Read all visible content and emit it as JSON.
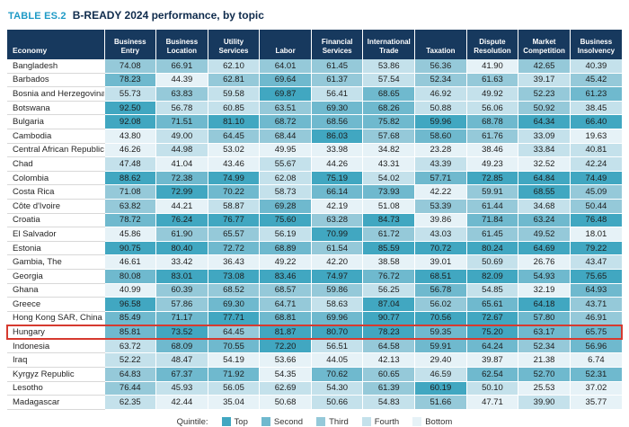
{
  "chart_data": {
    "type": "table",
    "table_tag": "TABLE ES.2",
    "title": "B-READY 2024 performance, by topic",
    "row_header": "Economy",
    "columns": [
      "Business Entry",
      "Business Location",
      "Utility Services",
      "Labor",
      "Financial Services",
      "International Trade",
      "Taxation",
      "Dispute Resolution",
      "Market Competition",
      "Business Insolvency"
    ],
    "rows": [
      {
        "economy": "Bangladesh",
        "values": [
          "74.08",
          "66.91",
          "62.10",
          "64.01",
          "61.45",
          "53.86",
          "56.36",
          "41.90",
          "42.65",
          "40.39"
        ]
      },
      {
        "economy": "Barbados",
        "values": [
          "78.23",
          "44.39",
          "62.81",
          "69.64",
          "61.37",
          "57.54",
          "52.34",
          "61.63",
          "39.17",
          "45.42"
        ]
      },
      {
        "economy": "Bosnia and Herzegovina",
        "values": [
          "55.73",
          "63.83",
          "59.58",
          "69.87",
          "56.41",
          "68.65",
          "46.92",
          "49.92",
          "52.23",
          "61.23"
        ]
      },
      {
        "economy": "Botswana",
        "values": [
          "92.50",
          "56.78",
          "60.85",
          "63.51",
          "69.30",
          "68.26",
          "50.88",
          "56.06",
          "50.92",
          "38.45"
        ]
      },
      {
        "economy": "Bulgaria",
        "values": [
          "92.08",
          "71.51",
          "81.10",
          "68.72",
          "68.56",
          "75.82",
          "59.96",
          "68.78",
          "64.34",
          "66.40"
        ]
      },
      {
        "economy": "Cambodia",
        "values": [
          "43.80",
          "49.00",
          "64.45",
          "68.44",
          "86.03",
          "57.68",
          "58.60",
          "61.76",
          "33.09",
          "19.63"
        ]
      },
      {
        "economy": "Central African Republic",
        "values": [
          "46.26",
          "44.98",
          "53.02",
          "49.95",
          "33.98",
          "34.82",
          "23.28",
          "38.46",
          "33.84",
          "40.81"
        ]
      },
      {
        "economy": "Chad",
        "values": [
          "47.48",
          "41.04",
          "43.46",
          "55.67",
          "44.26",
          "43.31",
          "43.39",
          "49.23",
          "32.52",
          "42.24"
        ]
      },
      {
        "economy": "Colombia",
        "values": [
          "88.62",
          "72.38",
          "74.99",
          "62.08",
          "75.19",
          "54.02",
          "57.71",
          "72.85",
          "64.84",
          "74.49"
        ]
      },
      {
        "economy": "Costa Rica",
        "values": [
          "71.08",
          "72.99",
          "70.22",
          "58.73",
          "66.14",
          "73.93",
          "42.22",
          "59.91",
          "68.55",
          "45.09"
        ]
      },
      {
        "economy": "Côte d'Ivoire",
        "values": [
          "63.82",
          "44.21",
          "58.87",
          "69.28",
          "42.19",
          "51.08",
          "53.39",
          "61.44",
          "34.68",
          "50.44"
        ]
      },
      {
        "economy": "Croatia",
        "values": [
          "78.72",
          "76.24",
          "76.77",
          "75.60",
          "63.28",
          "84.73",
          "39.86",
          "71.84",
          "63.24",
          "76.48"
        ]
      },
      {
        "economy": "El Salvador",
        "values": [
          "45.86",
          "61.90",
          "65.57",
          "56.19",
          "70.99",
          "61.72",
          "43.03",
          "61.45",
          "49.52",
          "18.01"
        ]
      },
      {
        "economy": "Estonia",
        "values": [
          "90.75",
          "80.40",
          "72.72",
          "68.89",
          "61.54",
          "85.59",
          "70.72",
          "80.24",
          "64.69",
          "79.22"
        ]
      },
      {
        "economy": "Gambia, The",
        "values": [
          "46.61",
          "33.42",
          "36.43",
          "49.22",
          "42.20",
          "38.58",
          "39.01",
          "50.69",
          "26.76",
          "43.47"
        ]
      },
      {
        "economy": "Georgia",
        "values": [
          "80.08",
          "83.01",
          "73.08",
          "83.46",
          "74.97",
          "76.72",
          "68.51",
          "82.09",
          "54.93",
          "75.65"
        ]
      },
      {
        "economy": "Ghana",
        "values": [
          "40.99",
          "60.39",
          "68.52",
          "68.57",
          "59.86",
          "56.25",
          "56.78",
          "54.85",
          "32.19",
          "64.93"
        ]
      },
      {
        "economy": "Greece",
        "values": [
          "96.58",
          "57.86",
          "69.30",
          "64.71",
          "58.63",
          "87.04",
          "56.02",
          "65.61",
          "64.18",
          "43.71"
        ]
      },
      {
        "economy": "Hong Kong SAR, China",
        "values": [
          "85.49",
          "71.17",
          "77.71",
          "68.81",
          "69.96",
          "90.77",
          "70.56",
          "72.67",
          "57.80",
          "46.91"
        ]
      },
      {
        "economy": "Hungary",
        "values": [
          "85.81",
          "73.52",
          "64.45",
          "81.87",
          "80.70",
          "78.23",
          "59.35",
          "75.20",
          "63.17",
          "65.75"
        ]
      },
      {
        "economy": "Indonesia",
        "values": [
          "63.72",
          "68.09",
          "70.55",
          "72.20",
          "56.51",
          "64.58",
          "59.91",
          "64.24",
          "52.34",
          "56.96"
        ]
      },
      {
        "economy": "Iraq",
        "values": [
          "52.22",
          "48.47",
          "54.19",
          "53.66",
          "44.05",
          "42.13",
          "29.40",
          "39.87",
          "21.38",
          "6.74"
        ]
      },
      {
        "economy": "Kyrgyz Republic",
        "values": [
          "64.83",
          "67.37",
          "71.92",
          "54.35",
          "70.62",
          "60.65",
          "46.59",
          "62.54",
          "52.70",
          "52.31"
        ]
      },
      {
        "economy": "Lesotho",
        "values": [
          "76.44",
          "45.93",
          "56.05",
          "62.69",
          "54.30",
          "61.39",
          "60.19",
          "50.10",
          "25.53",
          "37.02"
        ]
      },
      {
        "economy": "Madagascar",
        "values": [
          "62.35",
          "42.44",
          "35.04",
          "50.68",
          "50.66",
          "54.83",
          "51.66",
          "47.71",
          "39.90",
          "35.77"
        ]
      }
    ],
    "highlighted_row": "Hungary",
    "legend": {
      "label": "Quintile:",
      "items": [
        {
          "label": "Top",
          "color": "#41A7C1"
        },
        {
          "label": "Second",
          "color": "#6FB9CE"
        },
        {
          "label": "Third",
          "color": "#95C9D9"
        },
        {
          "label": "Fourth",
          "color": "#C4E1EB"
        },
        {
          "label": "Bottom",
          "color": "#E6F2F7"
        }
      ]
    },
    "layout": {
      "shading_rule": "per-topic quintile shading",
      "legend_position": "bottom-center"
    }
  },
  "colors": {
    "header_bg": "#17395E",
    "tag_teal": "#1E9AC6",
    "title_navy": "#0F2B4C",
    "highlight_red": "#D63A2F"
  }
}
